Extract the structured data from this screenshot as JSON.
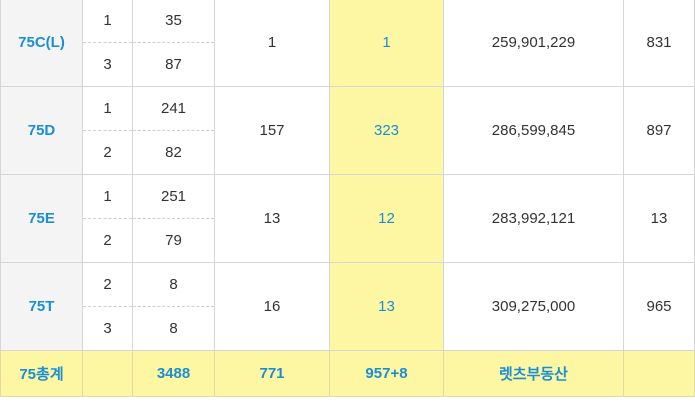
{
  "groups": [
    {
      "type": "75C(L)",
      "rows": [
        {
          "sub": "1",
          "count": "35"
        },
        {
          "sub": "3",
          "count": "87"
        }
      ],
      "col4": "1",
      "col5": "1",
      "price": "259,901,229",
      "col7": "831"
    },
    {
      "type": "75D",
      "rows": [
        {
          "sub": "1",
          "count": "241"
        },
        {
          "sub": "2",
          "count": "82"
        }
      ],
      "col4": "157",
      "col5": "323",
      "price": "286,599,845",
      "col7": "897"
    },
    {
      "type": "75E",
      "rows": [
        {
          "sub": "1",
          "count": "251"
        },
        {
          "sub": "2",
          "count": "79"
        }
      ],
      "col4": "13",
      "col5": "12",
      "price": "283,992,121",
      "col7": "13"
    },
    {
      "type": "75T",
      "rows": [
        {
          "sub": "2",
          "count": "8"
        },
        {
          "sub": "3",
          "count": "8"
        }
      ],
      "col4": "16",
      "col5": "13",
      "price": "309,275,000",
      "col7": "965"
    }
  ],
  "total": {
    "label": "75총계",
    "sub": "",
    "count": "3488",
    "col4": "771",
    "col5": "957+8",
    "price": "렛츠부동산",
    "col7": ""
  },
  "colors": {
    "highlight": "#fdf6a3",
    "accent": "#1a8fd6",
    "typeBg": "#f4f4f4"
  }
}
